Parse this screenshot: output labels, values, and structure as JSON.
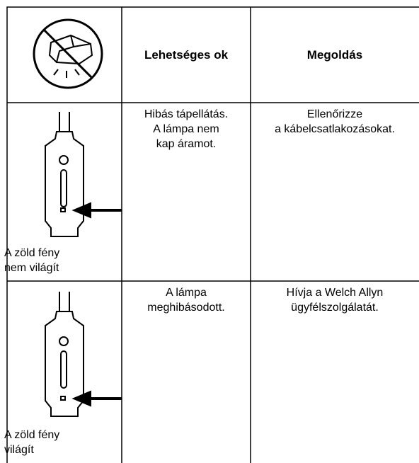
{
  "header": {
    "headings": [
      "Lehetséges ok",
      "Megoldás"
    ]
  },
  "rows": [
    {
      "status": [
        "A zöld fény",
        "nem világít"
      ],
      "cause": [
        "Hibás tápellátás.",
        "A lámpa nem",
        "kap áramot."
      ],
      "solution": [
        "Ellenőrizze",
        "a kábelcsatlakozásokat."
      ]
    },
    {
      "status": [
        "A zöld fény",
        "világít"
      ],
      "cause": [
        "A lámpa",
        "meghibásodott."
      ],
      "solution": [
        "Hívja a Welch Allyn",
        "ügyfélszolgálatát."
      ]
    }
  ]
}
